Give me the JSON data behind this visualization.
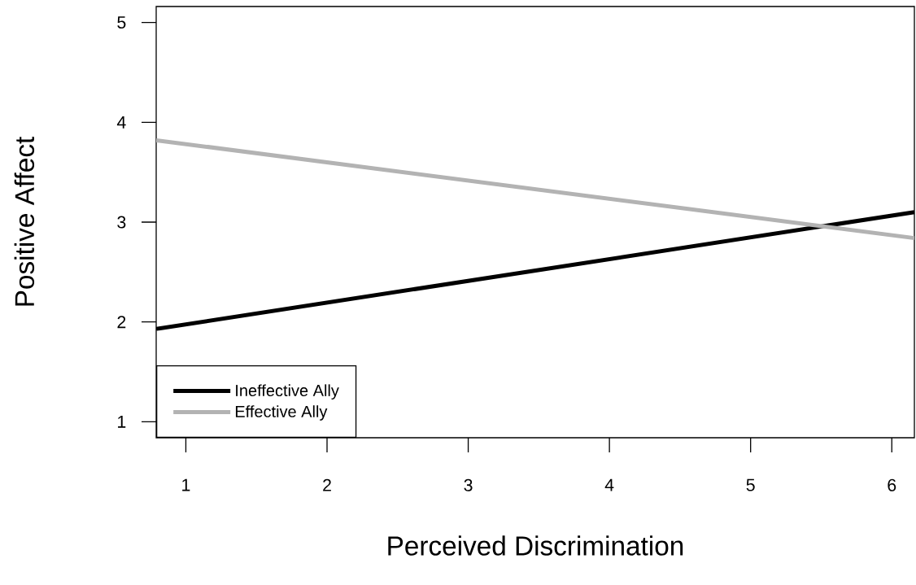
{
  "chart_data": {
    "type": "line",
    "xlabel": "Perceived Discrimination",
    "ylabel": "Positive Affect",
    "x": [
      0.79,
      6.16
    ],
    "xlim": [
      0.79,
      6.16
    ],
    "ylim": [
      0.84,
      5.16
    ],
    "xticks": [
      1,
      2,
      3,
      4,
      5,
      6
    ],
    "yticks": [
      1,
      2,
      3,
      4,
      5
    ],
    "legend": "bottom left",
    "marker": "none",
    "line_style": "solid",
    "series": [
      {
        "name": "Ineffective Ally",
        "color": "#000000",
        "values": [
          1.93,
          3.1
        ]
      },
      {
        "name": "Effective Ally",
        "color": "#b3b3b3",
        "values": [
          3.82,
          2.84
        ]
      }
    ]
  }
}
